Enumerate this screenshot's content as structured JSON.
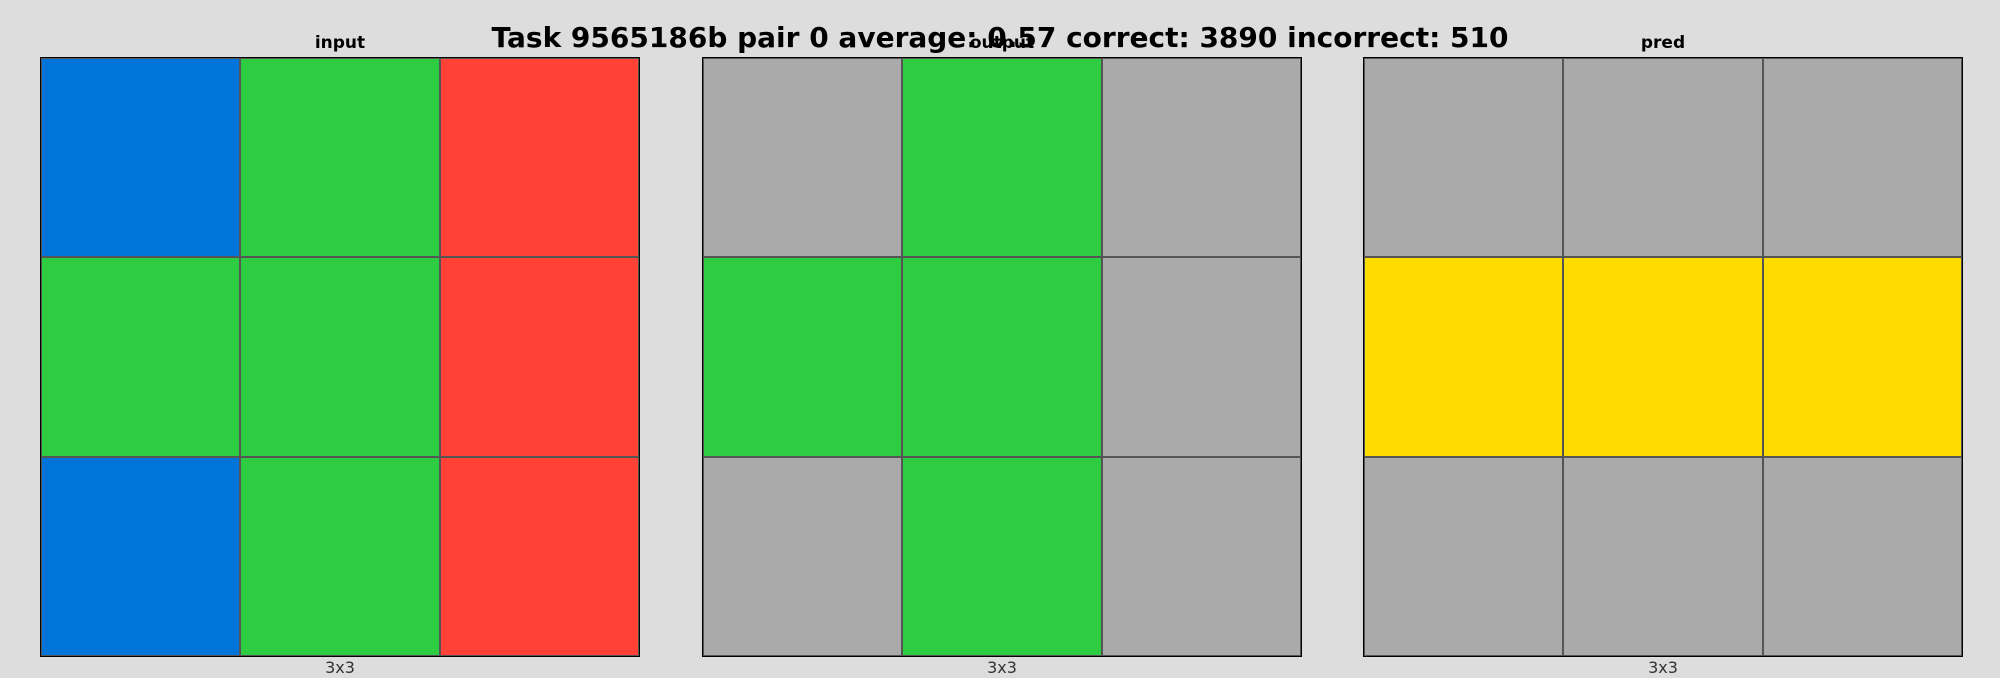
{
  "title": "Task 9565186b pair 0 average: 0.57 correct: 3890 incorrect: 510",
  "palette": {
    "0": "#000000",
    "1": "#0074D9",
    "2": "#FF4136",
    "3": "#2ECC40",
    "4": "#FFDC00",
    "5": "#AAAAAA"
  },
  "panels": [
    {
      "label": "input",
      "caption": "3x3",
      "grid": [
        [
          1,
          3,
          2
        ],
        [
          3,
          3,
          2
        ],
        [
          1,
          3,
          2
        ]
      ]
    },
    {
      "label": "output",
      "caption": "3x3",
      "grid": [
        [
          5,
          3,
          5
        ],
        [
          3,
          3,
          5
        ],
        [
          5,
          3,
          5
        ]
      ]
    },
    {
      "label": "pred",
      "caption": "3x3",
      "grid": [
        [
          5,
          5,
          5
        ],
        [
          4,
          4,
          4
        ],
        [
          5,
          5,
          5
        ]
      ]
    }
  ]
}
